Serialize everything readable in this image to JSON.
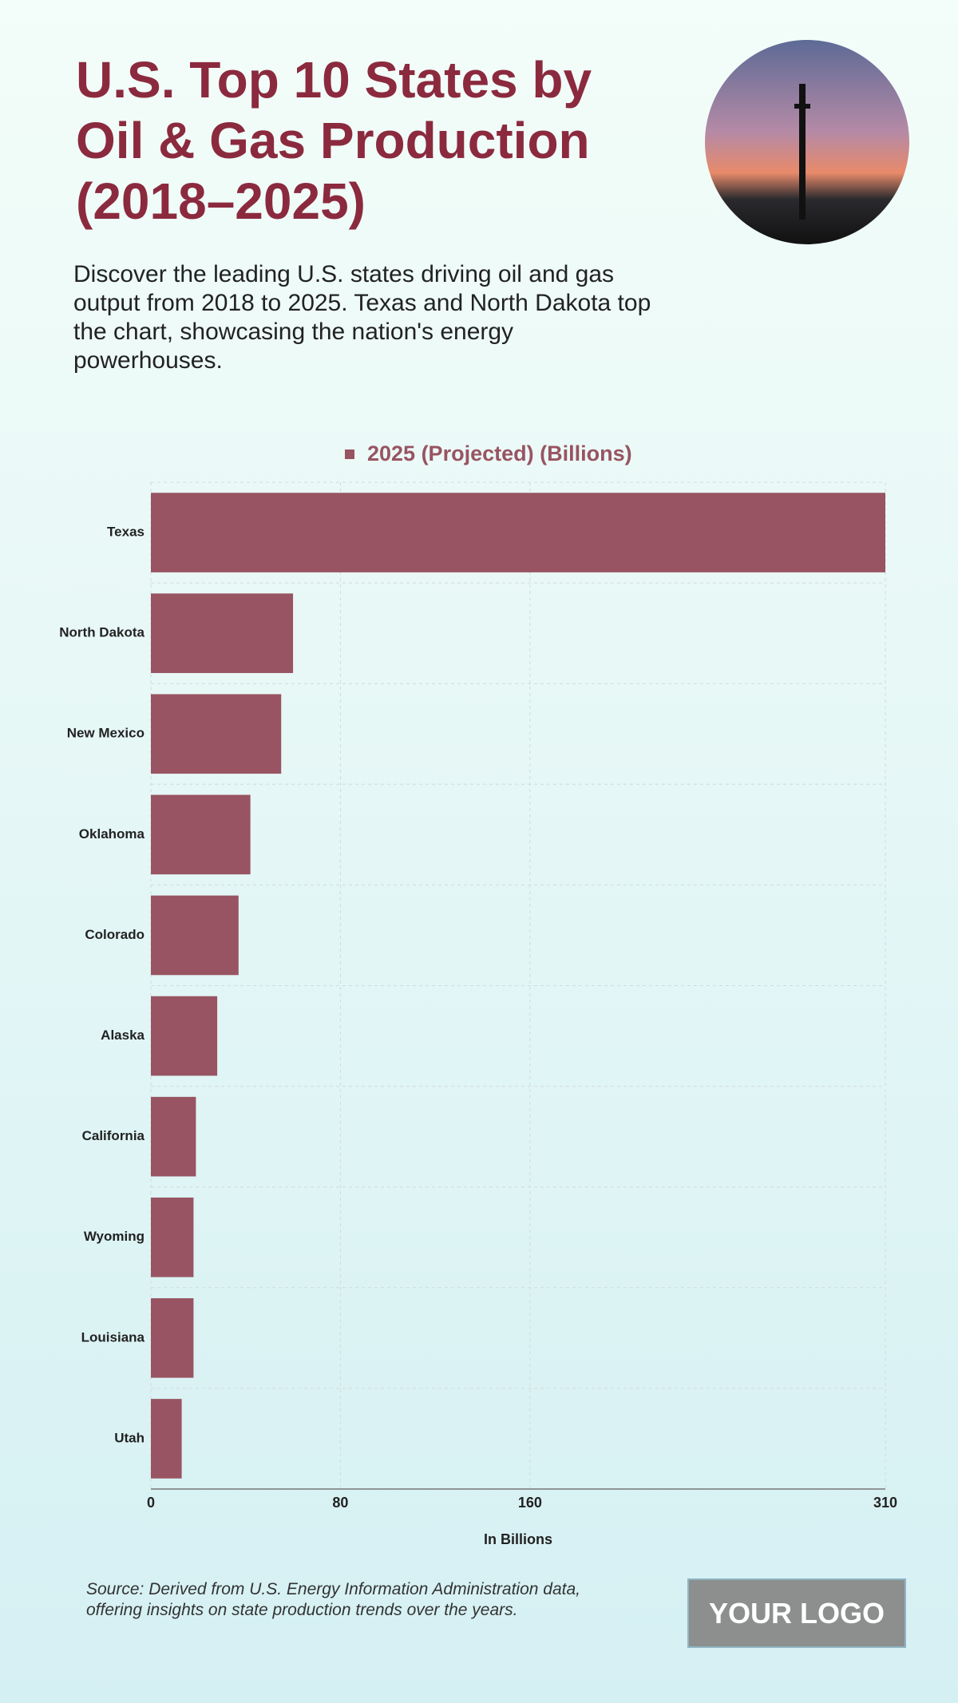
{
  "header": {
    "title": "U.S. Top 10 States by Oil & Gas Production (2018–2025)",
    "subtitle": "Discover the leading U.S. states driving oil and gas output from 2018 to 2025. Texas and North Dakota top the chart, showcasing the nation's energy powerhouses."
  },
  "chart_data": {
    "type": "bar",
    "orientation": "horizontal",
    "categories": [
      "Texas",
      "North Dakota",
      "New Mexico",
      "Oklahoma",
      "Colorado",
      "Alaska",
      "California",
      "Wyoming",
      "Louisiana",
      "Utah"
    ],
    "series": [
      {
        "name": "2025 (Projected) (Billions)",
        "color": "#985462",
        "values": [
          310,
          60,
          55,
          42,
          37,
          28,
          19,
          18,
          18,
          13
        ]
      }
    ],
    "xlim": [
      0,
      310
    ],
    "xticks": [
      0,
      80,
      160,
      310
    ],
    "x_label": "In Billions",
    "grid": true,
    "legend": "top"
  },
  "footer": {
    "source": "Source: Derived from U.S. Energy Information Administration data, offering insights on state production trends over the years.",
    "logo": "YOUR LOGO"
  }
}
